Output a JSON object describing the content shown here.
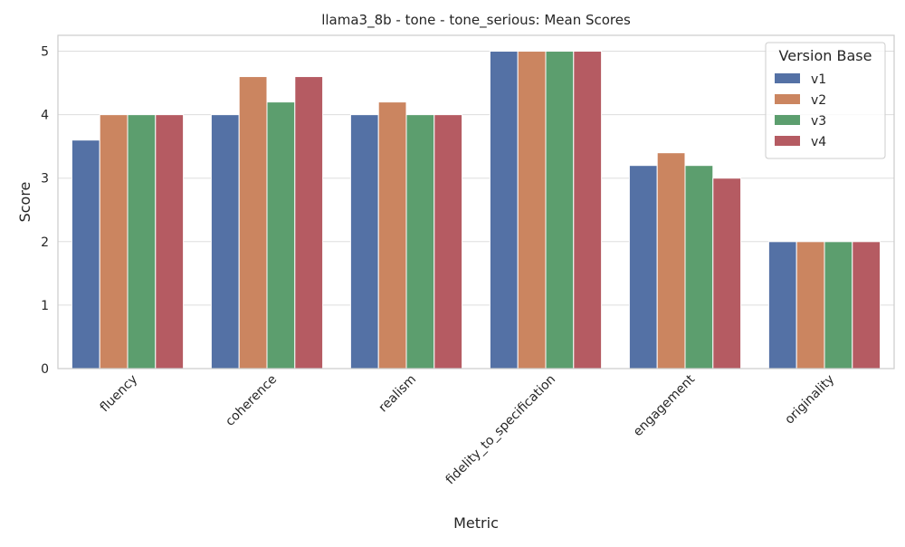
{
  "chart_data": {
    "type": "bar",
    "title": "llama3_8b - tone - tone_serious: Mean Scores",
    "xlabel": "Metric",
    "ylabel": "Score",
    "ylim": [
      0,
      5.25
    ],
    "yticks": [
      0,
      1,
      2,
      3,
      4,
      5
    ],
    "grid": true,
    "categories": [
      "fluency",
      "coherence",
      "realism",
      "fidelity_to_specification",
      "engagement",
      "originality"
    ],
    "legend": {
      "title": "Version Base",
      "placement": "top-right"
    },
    "series": [
      {
        "name": "v1",
        "color": "#5471a5",
        "values": [
          3.6,
          4.0,
          4.0,
          5.0,
          3.2,
          2.0
        ]
      },
      {
        "name": "v2",
        "color": "#cb8560",
        "values": [
          4.0,
          4.6,
          4.2,
          5.0,
          3.4,
          2.0
        ]
      },
      {
        "name": "v3",
        "color": "#5c9e6e",
        "values": [
          4.0,
          4.2,
          4.0,
          5.0,
          3.2,
          2.0
        ]
      },
      {
        "name": "v4",
        "color": "#b55b62",
        "values": [
          4.0,
          4.6,
          4.0,
          5.0,
          3.0,
          2.0
        ]
      }
    ]
  }
}
